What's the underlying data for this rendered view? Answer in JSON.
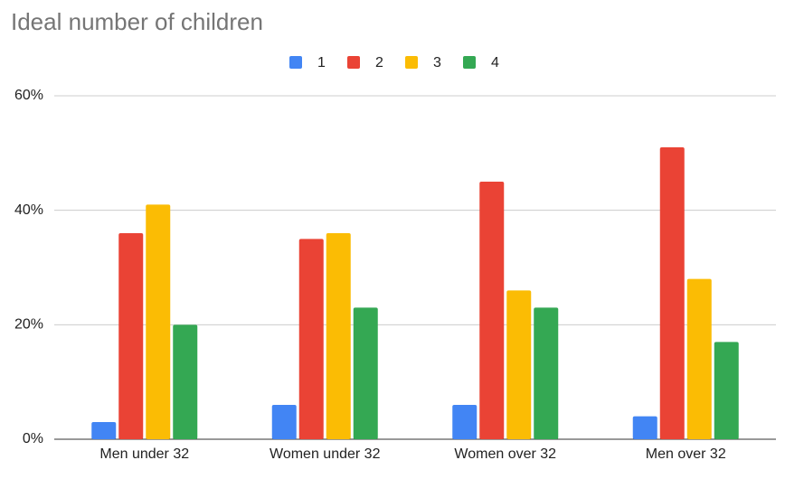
{
  "chart_data": {
    "type": "bar",
    "title": "Ideal number of children",
    "categories": [
      "Men under 32",
      "Women under 32",
      "Women over 32",
      "Men over 32"
    ],
    "series": [
      {
        "name": "1",
        "color": "#4285f4",
        "values": [
          3,
          6,
          6,
          4
        ]
      },
      {
        "name": "2",
        "color": "#ea4335",
        "values": [
          36,
          35,
          45,
          51
        ]
      },
      {
        "name": "3",
        "color": "#fbbc04",
        "values": [
          41,
          36,
          26,
          28
        ]
      },
      {
        "name": "4",
        "color": "#34a853",
        "values": [
          20,
          23,
          23,
          17
        ]
      }
    ],
    "ylim": [
      0,
      60
    ],
    "yticks": [
      {
        "value": 0,
        "label": "0%"
      },
      {
        "value": 20,
        "label": "20%"
      },
      {
        "value": 40,
        "label": "40%"
      },
      {
        "value": 60,
        "label": "60%"
      }
    ],
    "grid": true,
    "legend": "top"
  }
}
